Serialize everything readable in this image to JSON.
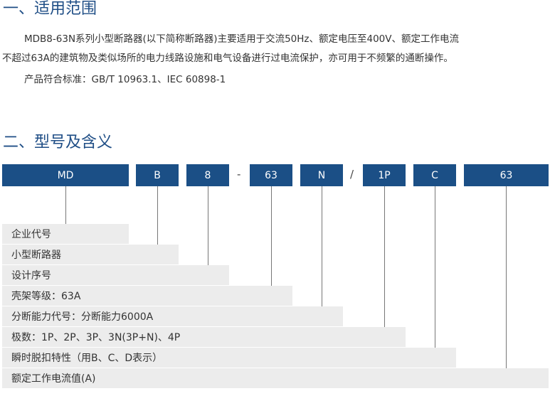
{
  "section1": {
    "title": "一、适用范围",
    "para_line1": "MDB8-63N系列小型断路器(以下简称断路器)主要适用于交流50Hz、额定电压至400V、额定工作电流",
    "para_line2": "不超过63A的建筑物及类似场所的电力线路设施和电气设备进行过电流保护，亦可用于不频繁的通断操作。",
    "standard": "产品符合标准：GB/T 10963.1、IEC 60898-1"
  },
  "section2": {
    "title": "二、型号及含义",
    "code_parts": [
      "MD",
      "B",
      "8",
      "63",
      "N",
      "1P",
      "C",
      "63"
    ],
    "separators": [
      "-",
      "/"
    ],
    "meanings": [
      "企业代号",
      "小型断路器",
      "设计序号",
      "壳架等级：63A",
      "分断能力代号：分断能力6000A",
      "极数：1P、2P、3P、3N(3P+N)、4P",
      "瞬时脱扣特性（用B、C、D表示）",
      "额定工作电流值(A)"
    ]
  }
}
